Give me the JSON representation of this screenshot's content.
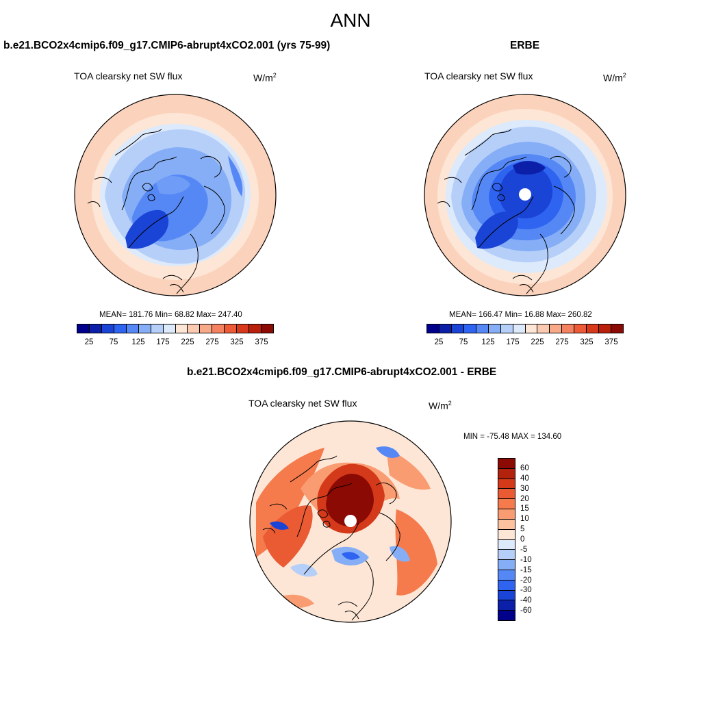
{
  "title": "ANN",
  "panels": [
    {
      "title": "b.e21.BCO2x4cmip6.f09_g17.CMIP6-abrupt4xCO2.001 (yrs 75-99)",
      "var_label": "TOA clearsky net SW flux",
      "units": "W/m",
      "units_sup": "2",
      "stats": "MEAN= 181.76  Min=  68.82  Max= 247.40"
    },
    {
      "title": "ERBE",
      "var_label": "TOA clearsky net SW flux",
      "units": "W/m",
      "units_sup": "2",
      "stats": "MEAN= 166.47  Min=  16.88  Max= 260.82"
    },
    {
      "title": "b.e21.BCO2x4cmip6.f09_g17.CMIP6-abrupt4xCO2.001 - ERBE",
      "var_label": "TOA clearsky net SW flux",
      "units": "W/m",
      "units_sup": "2",
      "stats": "MIN = -75.48 MAX = 134.60"
    }
  ],
  "colorbar_abs": {
    "labels": [
      "25",
      "75",
      "125",
      "175",
      "225",
      "275",
      "325",
      "375"
    ],
    "colors": [
      "#00008b",
      "#0b1fa8",
      "#1a44d6",
      "#2f64f0",
      "#5588f5",
      "#86aef7",
      "#b6cff9",
      "#ddeafb",
      "#fde6d6",
      "#fbcbb1",
      "#f8a988",
      "#f48261",
      "#ec5a37",
      "#d8391b",
      "#b8200c",
      "#8c0a04"
    ]
  },
  "colorbar_diff": {
    "labels": [
      "60",
      "40",
      "30",
      "20",
      "15",
      "10",
      "5",
      "0",
      "-5",
      "-10",
      "-15",
      "-20",
      "-30",
      "-40",
      "-60"
    ],
    "colors": [
      "#8c0a04",
      "#b3220d",
      "#d43a1a",
      "#ea5a33",
      "#f57a4c",
      "#f99c71",
      "#fcc19f",
      "#fde6d6",
      "#ddeafb",
      "#b6cff9",
      "#86aef7",
      "#5588f5",
      "#2f64f0",
      "#1a44d6",
      "#0b1fa8",
      "#00008b"
    ]
  }
}
